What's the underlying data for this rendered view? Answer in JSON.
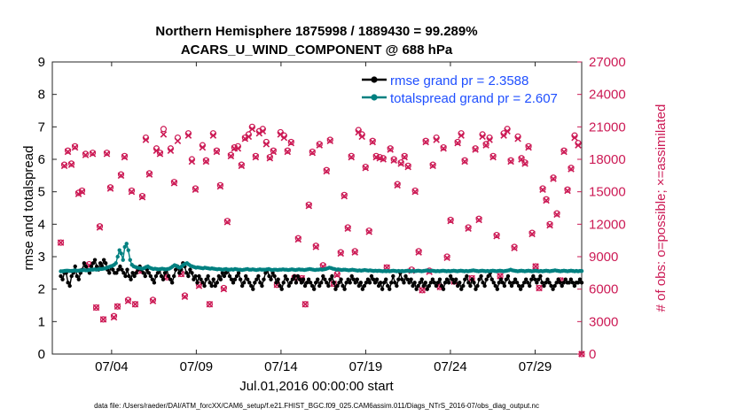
{
  "chart_data": {
    "type": "line",
    "title_line1": "Northern Hemisphere 1875998 / 1889430 = 99.289%",
    "title_line2": "ACARS_U_WIND_COMPONENT @ 688 hPa",
    "xlabel": "Jul.01,2016 00:00:00 start",
    "ylabel_left": "rmse and totalspread",
    "ylabel_right": "# of obs: o=possible; ×=assimilated",
    "footnote": "data file: /Users/raeder/DAI/ATM_forcXX/CAM6_setup/f.e21.FHIST_BGC.f09_025.CAM6assim.011/Diags_NTrS_2016-07/obs_diag_output.nc",
    "xlim": [
      0.5,
      31.75
    ],
    "x_ticks": [
      {
        "day": 4,
        "label": "07/04"
      },
      {
        "day": 9,
        "label": "07/09"
      },
      {
        "day": 14,
        "label": "07/14"
      },
      {
        "day": 19,
        "label": "07/19"
      },
      {
        "day": 24,
        "label": "07/24"
      },
      {
        "day": 29,
        "label": "07/29"
      }
    ],
    "ylim_left": [
      0,
      9
    ],
    "y_ticks_left": [
      "0",
      "1",
      "2",
      "3",
      "4",
      "5",
      "6",
      "7",
      "8",
      "9"
    ],
    "ylim_right": [
      0,
      27000
    ],
    "y_ticks_right": [
      "0",
      "3000",
      "6000",
      "9000",
      "12000",
      "15000",
      "18000",
      "21000",
      "24000",
      "27000"
    ],
    "series": [
      {
        "name": "rmse",
        "legend": "rmse grand pr = 2.3588",
        "color": "#000000",
        "values": [
          2.4,
          2.3,
          2.5,
          2.5,
          2.2,
          2.1,
          2.4,
          2.5,
          2.7,
          2.4,
          2.3,
          2.5,
          2.6,
          2.8,
          2.7,
          2.6,
          2.5,
          2.7,
          2.8,
          2.9,
          2.7,
          2.6,
          2.8,
          2.7,
          2.9,
          2.8,
          2.6,
          2.5,
          2.7,
          2.6,
          2.5,
          2.5,
          2.6,
          2.7,
          2.6,
          2.5,
          2.4,
          2.6,
          2.4,
          2.3,
          2.5,
          2.4,
          2.5,
          2.6,
          2.7,
          2.6,
          2.5,
          2.4,
          2.6,
          2.5,
          2.4,
          2.3,
          2.2,
          2.4,
          2.5,
          2.6,
          2.4,
          2.3,
          2.5,
          2.6,
          2.4,
          2.3,
          2.2,
          2.4,
          2.6,
          2.7,
          2.5,
          2.6,
          2.8,
          2.7,
          2.5,
          2.4,
          2.6,
          2.5,
          2.3,
          2.4,
          2.2,
          2.4,
          2.3,
          2.2,
          2.1,
          2.3,
          2.4,
          2.2,
          2.1,
          2.3,
          2.1,
          2.2,
          2.4,
          2.3,
          2.5,
          2.4,
          2.5,
          2.6,
          2.4,
          2.3,
          2.2,
          2.3,
          2.4,
          2.5,
          2.3,
          2.1,
          2.2,
          2.4,
          2.3,
          2.2,
          2.1,
          2.0,
          2.2,
          2.3,
          2.4,
          2.2,
          2.1,
          2.3,
          2.5,
          2.6,
          2.4,
          2.3,
          2.5,
          2.4,
          2.2,
          2.3,
          2.1,
          2.0,
          2.2,
          2.4,
          2.3,
          2.1,
          2.2,
          2.3,
          2.4,
          2.2,
          2.4,
          2.3,
          2.2,
          2.3,
          2.1,
          2.2,
          2.3,
          2.2,
          2.1,
          2.0,
          2.2,
          2.3,
          2.1,
          2.2,
          2.4,
          2.3,
          2.2,
          2.1,
          2.3,
          2.4,
          2.2,
          2.0,
          2.1,
          2.2,
          2.3,
          2.1,
          2.0,
          2.2,
          2.3,
          2.2,
          2.4,
          2.3,
          2.2,
          2.3,
          2.1,
          2.2,
          2.0,
          2.1,
          2.2,
          2.3,
          2.2,
          2.4,
          2.3,
          2.2,
          2.3,
          2.1,
          2.2,
          2.0,
          2.2,
          2.3,
          2.1,
          2.0,
          2.2,
          2.4,
          2.2,
          2.1,
          2.3,
          2.5,
          2.3,
          2.2,
          2.4,
          2.3,
          2.2,
          2.3,
          2.1,
          2.2,
          2.0,
          2.1,
          2.2,
          2.3,
          2.1,
          2.2,
          2.0,
          2.1,
          2.2,
          2.3,
          2.2,
          2.1,
          2.2,
          2.3,
          2.1,
          2.0,
          2.2,
          2.3,
          2.2,
          2.4,
          2.3,
          2.2,
          2.3,
          2.1,
          2.2,
          2.0,
          2.1,
          2.3,
          2.4,
          2.2,
          2.1,
          2.3,
          2.2,
          2.0,
          2.1,
          2.3,
          2.4,
          2.2,
          2.1,
          2.3,
          2.4,
          2.5,
          2.3,
          2.2,
          2.1,
          2.0,
          2.2,
          2.3,
          2.2,
          2.1,
          2.3,
          2.4,
          2.2,
          2.1,
          2.2,
          2.3,
          2.2,
          2.1,
          2.0,
          2.1,
          2.2,
          2.3,
          2.2,
          2.1,
          2.3,
          2.4,
          2.3,
          2.2,
          2.3,
          2.4,
          2.2,
          2.1,
          2.2,
          2.3,
          2.2,
          2.1,
          2.0,
          2.1,
          2.2,
          2.3,
          2.2,
          2.1,
          2.2,
          2.3,
          2.2,
          2.2,
          2.3,
          2.2,
          2.1,
          2.2,
          2.2,
          2.3,
          2.2
        ]
      },
      {
        "name": "totalspread",
        "legend": "totalspread grand pr = 2.607",
        "color": "#008080",
        "values": [
          2.55,
          2.55,
          2.56,
          2.57,
          2.57,
          2.56,
          2.56,
          2.57,
          2.58,
          2.57,
          2.57,
          2.58,
          2.58,
          2.59,
          2.58,
          2.58,
          2.59,
          2.6,
          2.6,
          2.61,
          2.6,
          2.61,
          2.62,
          2.62,
          2.63,
          2.64,
          2.66,
          2.68,
          2.7,
          2.72,
          2.75,
          2.8,
          3.0,
          3.2,
          3.1,
          2.9,
          3.3,
          3.4,
          3.2,
          2.9,
          2.75,
          2.7,
          2.68,
          2.66,
          2.65,
          2.64,
          2.63,
          2.65,
          2.68,
          2.7,
          2.66,
          2.64,
          2.62,
          2.63,
          2.62,
          2.61,
          2.62,
          2.63,
          2.62,
          2.61,
          2.62,
          2.63,
          2.66,
          2.7,
          2.74,
          2.72,
          2.68,
          2.66,
          2.7,
          2.75,
          2.78,
          2.8,
          2.76,
          2.72,
          2.7,
          2.68,
          2.66,
          2.67,
          2.66,
          2.65,
          2.64,
          2.66,
          2.65,
          2.64,
          2.63,
          2.64,
          2.63,
          2.62,
          2.61,
          2.62,
          2.61,
          2.6,
          2.61,
          2.62,
          2.6,
          2.6,
          2.61,
          2.6,
          2.62,
          2.61,
          2.6,
          2.6,
          2.59,
          2.6,
          2.61,
          2.62,
          2.6,
          2.6,
          2.61,
          2.6,
          2.59,
          2.6,
          2.61,
          2.6,
          2.6,
          2.6,
          2.61,
          2.62,
          2.6,
          2.59,
          2.6,
          2.6,
          2.59,
          2.6,
          2.6,
          2.61,
          2.6,
          2.6,
          2.59,
          2.6,
          2.61,
          2.6,
          2.59,
          2.6,
          2.61,
          2.6,
          2.6,
          2.59,
          2.6,
          2.61,
          2.62,
          2.61,
          2.6,
          2.59,
          2.6,
          2.6,
          2.61,
          2.6,
          2.61,
          2.62,
          2.64,
          2.66,
          2.65,
          2.63,
          2.62,
          2.6,
          2.61,
          2.6,
          2.59,
          2.6,
          2.6,
          2.59,
          2.58,
          2.59,
          2.6,
          2.59,
          2.58,
          2.57,
          2.58,
          2.57,
          2.58,
          2.59,
          2.58,
          2.57,
          2.58,
          2.57,
          2.56,
          2.57,
          2.56,
          2.57,
          2.56,
          2.55,
          2.56,
          2.55,
          2.56,
          2.55,
          2.56,
          2.57,
          2.56,
          2.55,
          2.56,
          2.55,
          2.56,
          2.55,
          2.56,
          2.57,
          2.56,
          2.55,
          2.56,
          2.55,
          2.56,
          2.57,
          2.56,
          2.55,
          2.56,
          2.57,
          2.58,
          2.57,
          2.56,
          2.57,
          2.56,
          2.55,
          2.56,
          2.55,
          2.56,
          2.57,
          2.56,
          2.55,
          2.56,
          2.55,
          2.56,
          2.57,
          2.56,
          2.55,
          2.56,
          2.57,
          2.56,
          2.55,
          2.56,
          2.55,
          2.56,
          2.57,
          2.58,
          2.57,
          2.56,
          2.55,
          2.56,
          2.57,
          2.56,
          2.55,
          2.56,
          2.55,
          2.56,
          2.57,
          2.56,
          2.55,
          2.56,
          2.57,
          2.56,
          2.55,
          2.56,
          2.57,
          2.58,
          2.6,
          2.58,
          2.57,
          2.56,
          2.55,
          2.56,
          2.57,
          2.56,
          2.55,
          2.56,
          2.57,
          2.56,
          2.55,
          2.56,
          2.57,
          2.56,
          2.55,
          2.56,
          2.55,
          2.56,
          2.57,
          2.56,
          2.55,
          2.56,
          2.57,
          2.58,
          2.57,
          2.56,
          2.55,
          2.56,
          2.57,
          2.56,
          2.55,
          2.56,
          2.57,
          2.56,
          2.55,
          2.56,
          2.55,
          2.56,
          2.56
        ]
      }
    ],
    "obs_series": {
      "name": "# of obs",
      "color": "#cc1a55",
      "possible": [
        10300,
        17500,
        18800,
        17600,
        19200,
        14900,
        15100,
        18500,
        8300,
        18600,
        4300,
        11800,
        3200,
        18600,
        15400,
        3500,
        4400,
        16600,
        18300,
        5000,
        15100,
        4600,
        7700,
        14600,
        20000,
        16700,
        5000,
        19000,
        18600,
        20800,
        7100,
        19000,
        15900,
        20000,
        7400,
        5400,
        20400,
        18000,
        15300,
        6400,
        19300,
        17900,
        4600,
        20400,
        18800,
        15600,
        6100,
        12300,
        18400,
        19100,
        19200,
        17500,
        20000,
        20300,
        21000,
        18300,
        20600,
        20800,
        19600,
        18200,
        18800,
        6400,
        20500,
        20200,
        18800,
        19600,
        7100,
        10700,
        7000,
        4600,
        13800,
        18700,
        10000,
        19400,
        8200,
        17000,
        19800,
        6500,
        7400,
        9400,
        14700,
        11700,
        18300,
        9500,
        20700,
        20300,
        17300,
        11400,
        19700,
        18300,
        18200,
        18100,
        8000,
        19000,
        18000,
        15700,
        17700,
        18300,
        17400,
        7800,
        15100,
        9500,
        5900,
        19700,
        7700,
        17500,
        20000,
        6200,
        19100,
        9000,
        12400,
        6700,
        19600,
        20400,
        17900,
        11700,
        7000,
        19000,
        12500,
        20300,
        19400,
        20000,
        18300,
        11000,
        7200,
        20400,
        20800,
        17900,
        9900,
        20100,
        18100,
        17700,
        19200,
        11200,
        8100,
        6100,
        15300,
        14300,
        12000,
        16300,
        13000,
        6800,
        18800,
        15200,
        17200,
        20200,
        19500,
        0
      ],
      "assimilated": [
        10300,
        17400,
        18700,
        17500,
        19100,
        14800,
        15000,
        18400,
        8200,
        18500,
        4300,
        11700,
        3200,
        18500,
        15300,
        3400,
        4400,
        16500,
        18200,
        4900,
        15000,
        4600,
        7700,
        14500,
        19800,
        16600,
        4900,
        18800,
        18500,
        20300,
        7100,
        18800,
        15800,
        19700,
        7400,
        5300,
        20200,
        17800,
        15200,
        6300,
        19100,
        17800,
        4600,
        20200,
        18700,
        15500,
        6000,
        12200,
        18300,
        19000,
        19000,
        17400,
        19900,
        20100,
        20800,
        18200,
        20400,
        20600,
        19400,
        18100,
        18700,
        6400,
        20300,
        20000,
        18700,
        19500,
        7000,
        10600,
        7000,
        4600,
        13700,
        18600,
        9900,
        19300,
        8100,
        16900,
        19700,
        6500,
        7300,
        9300,
        14600,
        11600,
        18200,
        9400,
        20500,
        20100,
        17200,
        11300,
        19600,
        18200,
        18100,
        18000,
        8000,
        18900,
        17900,
        15600,
        17600,
        18200,
        17300,
        7700,
        15000,
        9400,
        5900,
        19600,
        7600,
        17400,
        19800,
        6200,
        19000,
        8900,
        12300,
        6700,
        19500,
        20200,
        17800,
        11600,
        7000,
        18900,
        12400,
        20100,
        19300,
        19800,
        18200,
        10900,
        7200,
        20200,
        20600,
        17800,
        9800,
        19900,
        18000,
        17600,
        19100,
        11100,
        8100,
        6100,
        15200,
        14200,
        11900,
        16200,
        12900,
        6800,
        18700,
        15100,
        17100,
        20000,
        19300,
        0
      ]
    }
  }
}
